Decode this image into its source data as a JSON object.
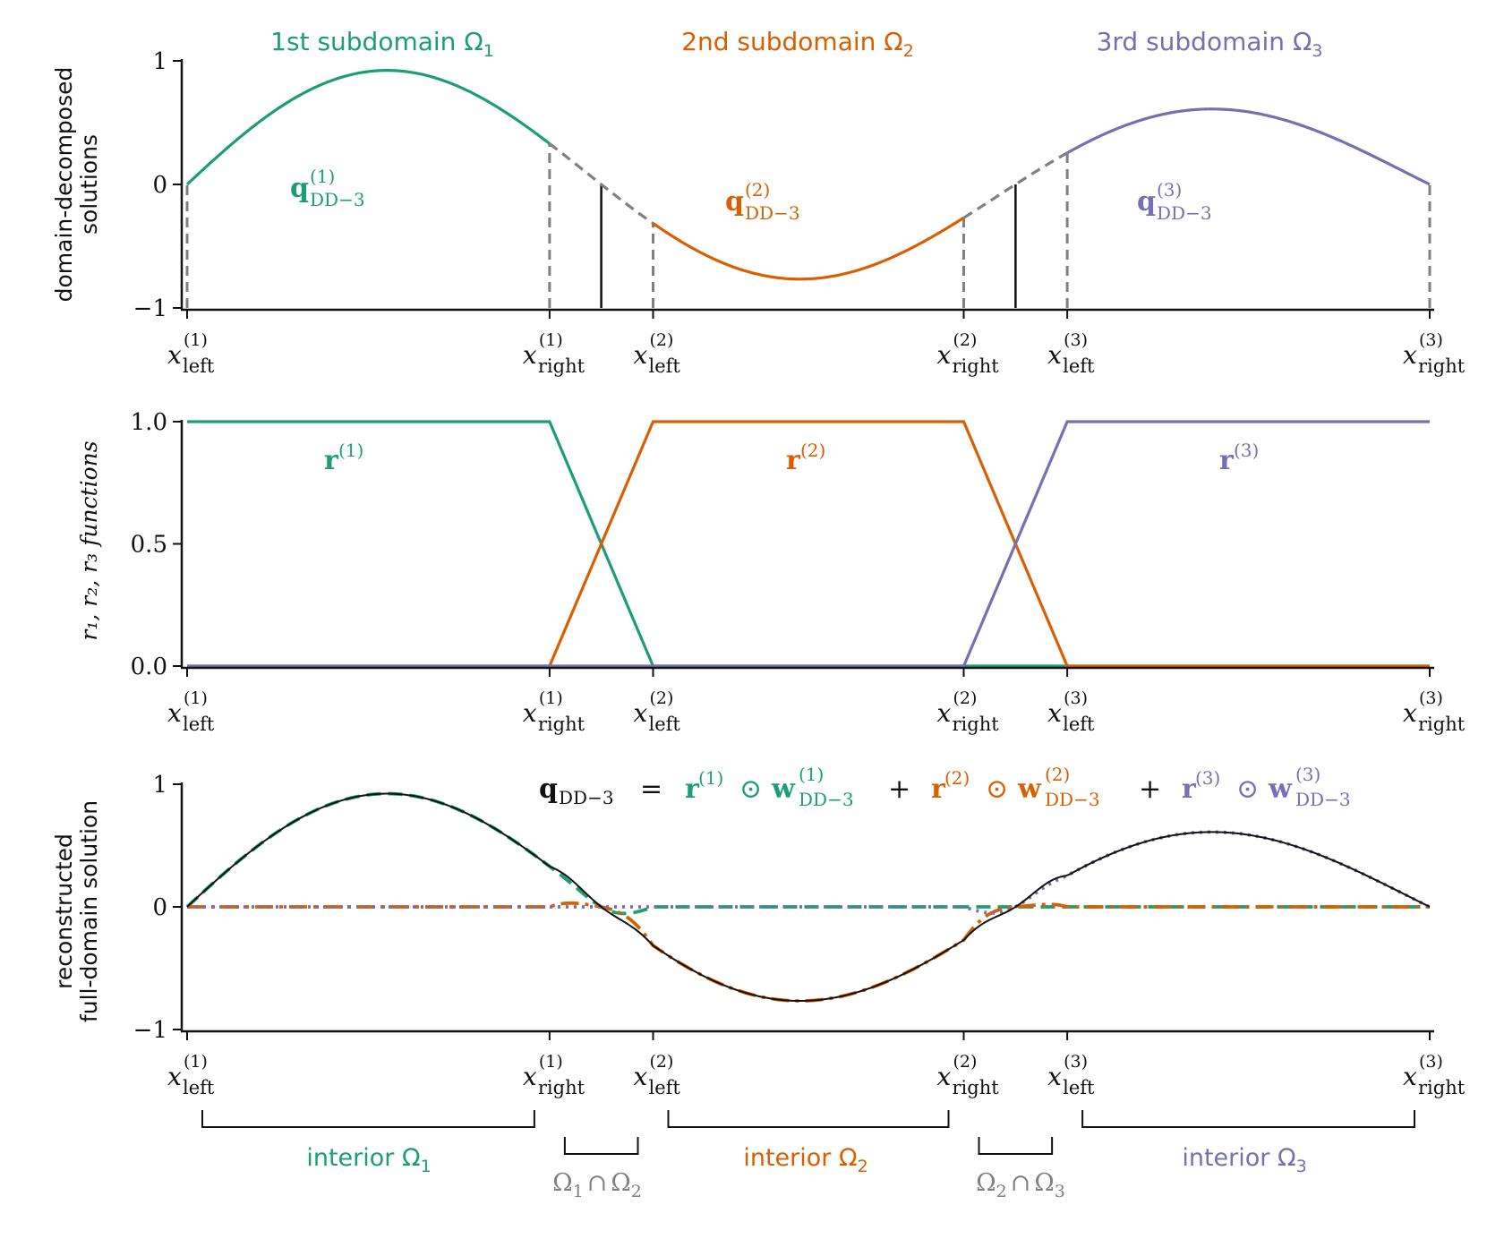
{
  "colors": {
    "green": "#1b9e77",
    "orange": "#d95f02",
    "purple": "#7570b3",
    "gray": "#808080",
    "black": "#111111"
  },
  "chart_data": [
    {
      "type": "line",
      "panel": "top",
      "ylabel": [
        "domain-decomposed",
        "solutions"
      ],
      "ylim": [
        -1,
        1
      ],
      "yticks": [
        -1,
        0,
        1
      ],
      "ytick_labels": [
        "−1",
        "0",
        "1"
      ],
      "x_domain": [
        0,
        1
      ],
      "boundaries": [
        {
          "name": "left",
          "sup": "(1)",
          "x": 0.0
        },
        {
          "name": "right",
          "sup": "(1)",
          "x": 0.2917
        },
        {
          "name": "left",
          "sup": "(2)",
          "x": 0.375
        },
        {
          "name": "right",
          "sup": "(2)",
          "x": 0.625
        },
        {
          "name": "left",
          "sup": "(3)",
          "x": 0.7083
        },
        {
          "name": "right",
          "sup": "(3)",
          "x": 1.0
        }
      ],
      "interface_lines": [
        0.3333,
        0.6667
      ],
      "subdomain_titles": [
        {
          "text": "1st subdomain Ω",
          "sub": "1",
          "color": "#1b9e77"
        },
        {
          "text": "2nd subdomain Ω",
          "sub": "2",
          "color": "#d95f02"
        },
        {
          "text": "3rd subdomain Ω",
          "sub": "3",
          "color": "#7570b3"
        }
      ],
      "curve_labels": [
        {
          "base": "q",
          "sup": "(1)",
          "sub": "DD−3",
          "color": "#1b9e77"
        },
        {
          "base": "q",
          "sup": "(2)",
          "sub": "DD−3",
          "color": "#d95f02"
        },
        {
          "base": "q",
          "sup": "(3)",
          "sub": "DD−3",
          "color": "#7570b3"
        }
      ],
      "series": [
        {
          "name": "q(1) DD-3",
          "color": "#1b9e77",
          "x_range": [
            0.0,
            0.2917
          ]
        },
        {
          "name": "q(2) DD-3",
          "color": "#d95f02",
          "x_range": [
            0.375,
            0.625
          ]
        },
        {
          "name": "q(3) DD-3",
          "color": "#7570b3",
          "x_range": [
            0.7083,
            1.0
          ]
        },
        {
          "name": "overlap 1-2",
          "color": "#808080",
          "style": "dashed",
          "x_range": [
            0.2917,
            0.375
          ]
        },
        {
          "name": "overlap 2-3",
          "color": "#808080",
          "style": "dashed",
          "x_range": [
            0.625,
            0.7083
          ]
        }
      ],
      "function": "sin(3πx) · (1 − 0.47x)"
    },
    {
      "type": "line",
      "panel": "middle",
      "ylabel": [
        "r₁, r₂, r₃ functions"
      ],
      "ylim": [
        0,
        1
      ],
      "yticks": [
        0,
        0.5,
        1
      ],
      "ytick_labels": [
        "0.0",
        "0.5",
        "1.0"
      ],
      "curve_labels": [
        {
          "base": "r",
          "sup": "(1)",
          "color": "#1b9e77"
        },
        {
          "base": "r",
          "sup": "(2)",
          "color": "#d95f02"
        },
        {
          "base": "r",
          "sup": "(3)",
          "color": "#7570b3"
        }
      ],
      "series": [
        {
          "name": "r(1)",
          "color": "#1b9e77",
          "x": [
            0,
            0.2917,
            0.375,
            0.625,
            0.7083,
            1.0
          ],
          "y": [
            1,
            1,
            0,
            0,
            0,
            0
          ]
        },
        {
          "name": "r(2)",
          "color": "#d95f02",
          "x": [
            0,
            0.2917,
            0.375,
            0.625,
            0.7083,
            1.0
          ],
          "y": [
            0,
            0,
            1,
            1,
            0,
            0
          ]
        },
        {
          "name": "r(3)",
          "color": "#7570b3",
          "x": [
            0,
            0.625,
            0.7083,
            1.0
          ],
          "y": [
            0,
            0,
            1,
            1
          ]
        }
      ]
    },
    {
      "type": "line",
      "panel": "bottom",
      "ylabel": [
        "reconstructed",
        "full-domain solution"
      ],
      "ylim": [
        -1,
        1
      ],
      "yticks": [
        -1,
        0,
        1
      ],
      "ytick_labels": [
        "−1",
        "0",
        "1"
      ],
      "equation": {
        "lhs": "q",
        "lhs_sub": "DD−3",
        "eq": "=",
        "plus": "+",
        "terms": [
          {
            "r": "r",
            "r_sup": "(1)",
            "odot": "⊙",
            "w": "w",
            "w_sup": "(1)",
            "w_sub": "DD−3",
            "color": "#1b9e77"
          },
          {
            "r": "r",
            "r_sup": "(2)",
            "odot": "⊙",
            "w": "w",
            "w_sup": "(2)",
            "w_sub": "DD−3",
            "color": "#d95f02"
          },
          {
            "r": "r",
            "r_sup": "(3)",
            "odot": "⊙",
            "w": "w",
            "w_sup": "(3)",
            "w_sub": "DD−3",
            "color": "#7570b3"
          }
        ]
      },
      "series": [
        {
          "name": "q DD-3 (reconstructed)",
          "color": "#111111",
          "style": "solid"
        },
        {
          "name": "r(1) ⊙ w(1)",
          "color": "#1b9e77",
          "style": "dashed"
        },
        {
          "name": "r(2) ⊙ w(2)",
          "color": "#d95f02",
          "style": "dashdot"
        },
        {
          "name": "r(3) ⊙ w(3)",
          "color": "#7570b3",
          "style": "dotted"
        }
      ],
      "region_braces": [
        {
          "label": "interior Ω",
          "sub": "1",
          "color": "#1b9e77",
          "x_range": [
            0.0,
            0.2917
          ]
        },
        {
          "label": "Ω",
          "sub": "1",
          "cap": "∩",
          "label2": "Ω",
          "sub2": "2",
          "color": "#808080",
          "x_range": [
            0.2917,
            0.375
          ]
        },
        {
          "label": "interior Ω",
          "sub": "2",
          "color": "#d95f02",
          "x_range": [
            0.375,
            0.625
          ]
        },
        {
          "label": "Ω",
          "sub": "2",
          "cap": "∩",
          "label2": "Ω",
          "sub2": "3",
          "color": "#808080",
          "x_range": [
            0.625,
            0.7083
          ]
        },
        {
          "label": "interior Ω",
          "sub": "3",
          "color": "#7570b3",
          "x_range": [
            0.7083,
            1.0
          ]
        }
      ]
    }
  ]
}
